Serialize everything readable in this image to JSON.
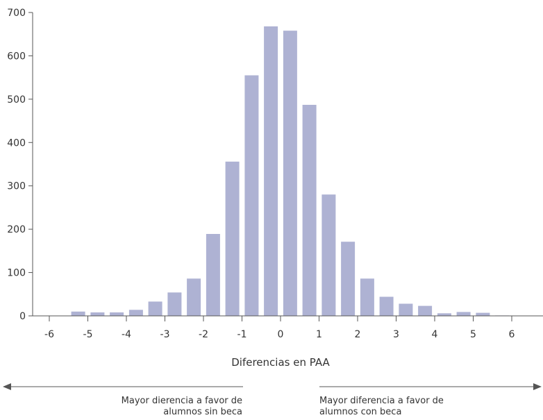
{
  "chart_data": {
    "type": "bar",
    "xlabel": "Diferencias en PAA",
    "ylabel": "",
    "title": "",
    "x": [
      -5.25,
      -4.75,
      -4.25,
      -3.75,
      -3.25,
      -2.75,
      -2.25,
      -1.75,
      -1.25,
      -0.75,
      -0.25,
      0.25,
      0.75,
      1.25,
      1.75,
      2.25,
      2.75,
      3.25,
      3.75,
      4.25,
      4.75,
      5.25,
      5.75
    ],
    "values": [
      10,
      8,
      8,
      14,
      33,
      54,
      86,
      189,
      356,
      555,
      668,
      658,
      487,
      280,
      171,
      86,
      44,
      28,
      23,
      6,
      9,
      7,
      1
    ],
    "xlim": [
      -6.5,
      6.75
    ],
    "ylim": [
      0,
      700
    ],
    "x_ticks": [
      "-6",
      "-5",
      "-4",
      "-3",
      "-2",
      "-1",
      "0",
      "1",
      "2",
      "3",
      "4",
      "5",
      "6"
    ],
    "y_ticks": [
      "0",
      "100",
      "200",
      "300",
      "400",
      "500",
      "600",
      "700"
    ],
    "grid": false,
    "bar_color": "#aeb2d3",
    "annotations": {
      "left": [
        "Mayor dierencia a favor de",
        "alumnos sin beca"
      ],
      "right": [
        "Mayor diferencia a favor de",
        "alumnos con beca"
      ],
      "arrow_color": "#555555"
    }
  }
}
